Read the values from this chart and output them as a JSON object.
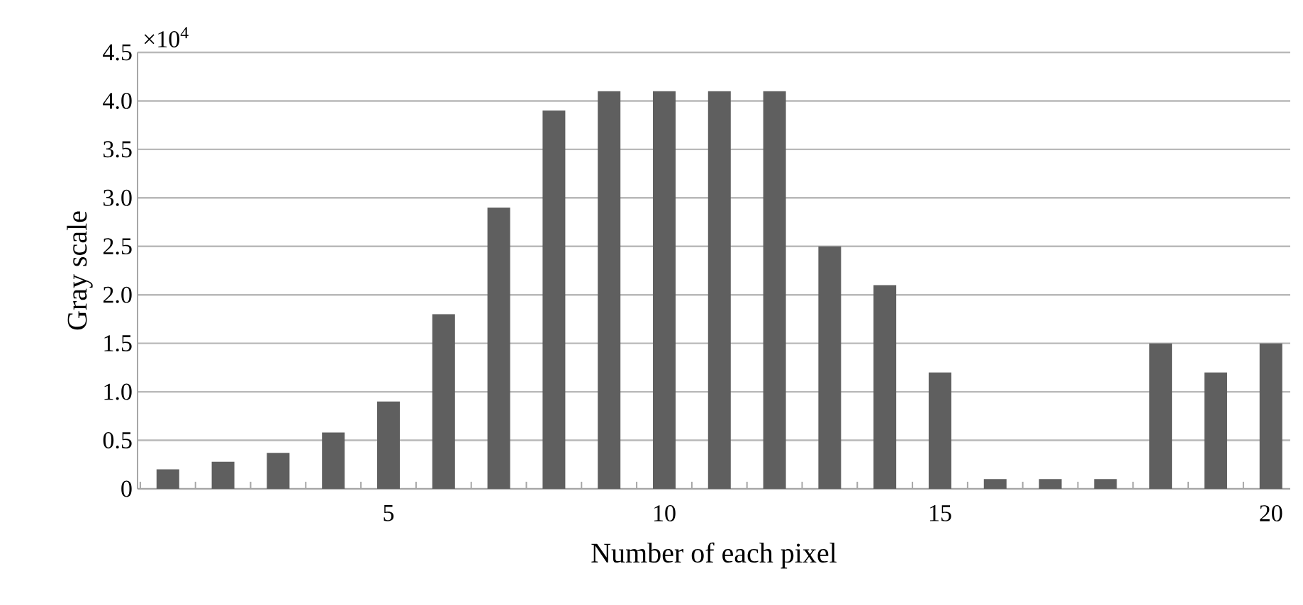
{
  "chart_data": {
    "type": "bar",
    "xlabel": "Number of each pixel",
    "ylabel": "Gray scale",
    "annotations": [
      "×10$^{4}$"
    ],
    "categories": [
      null,
      null,
      null,
      null,
      "5",
      null,
      null,
      null,
      null,
      "10",
      null,
      null,
      null,
      null,
      "15",
      null,
      null,
      null,
      null,
      null,
      "20"
    ],
    "values": [
      0.2,
      0.28,
      0.37,
      0.58,
      0.9,
      1.8,
      2.9,
      3.9,
      4.1,
      4.1,
      4.1,
      4.1,
      2.5,
      2.1,
      1.2,
      0.1,
      0.1,
      0.1,
      1.5,
      1.2,
      1.5
    ],
    "color": "#5f5f5f",
    "ylim": [
      0,
      4.5
    ],
    "yticks": [
      0,
      0.5,
      {
        "value": 1.0,
        "label": "1.0"
      },
      1.5,
      {
        "value": 2.0,
        "label": "2.0"
      },
      2.5,
      {
        "value": 3.0,
        "label": "3.0"
      },
      3.5,
      {
        "value": 4.0,
        "label": "4.0"
      },
      4.5
    ],
    "grid": "y"
  }
}
